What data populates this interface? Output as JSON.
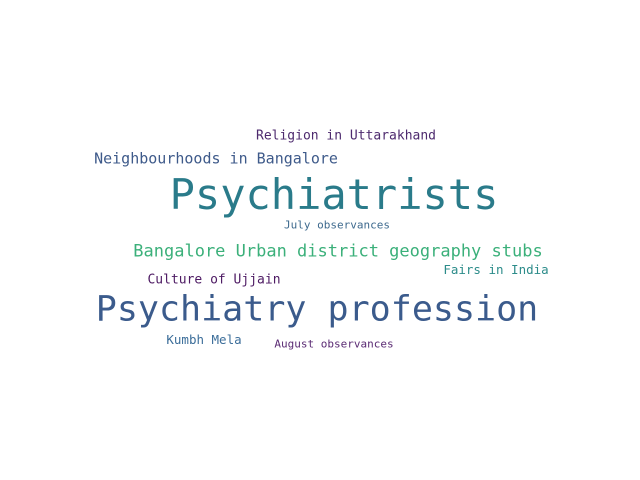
{
  "word_cloud": {
    "words": [
      {
        "text": "Religion in Uttarakhand",
        "color": "#4d2a6e"
      },
      {
        "text": "Neighbourhoods in Bangalore",
        "color": "#3e5a8a"
      },
      {
        "text": "Psychiatrists",
        "color": "#2a7b8a"
      },
      {
        "text": "July observances",
        "color": "#3e6a8e"
      },
      {
        "text": "Bangalore Urban district geography stubs",
        "color": "#3bb07a"
      },
      {
        "text": "Fairs in India",
        "color": "#2c8c8a"
      },
      {
        "text": "Culture of Ujjain",
        "color": "#4d1a63"
      },
      {
        "text": "Psychiatry profession",
        "color": "#3b5b8c"
      },
      {
        "text": "Kumbh Mela",
        "color": "#3c6e9a"
      },
      {
        "text": "August observances",
        "color": "#5a2a73"
      }
    ]
  }
}
